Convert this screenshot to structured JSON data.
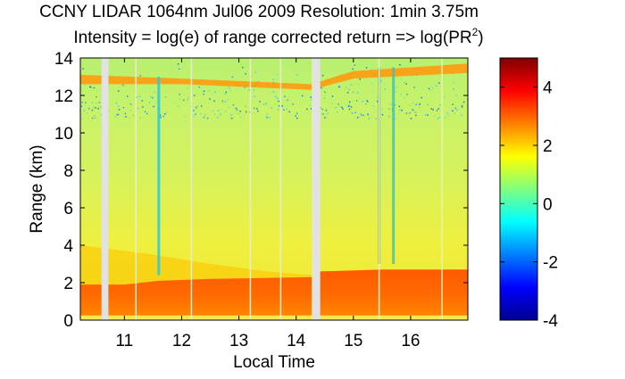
{
  "chart_data": {
    "type": "heatmap",
    "title_line1": "CCNY LIDAR 1064nm Jul06 2009 Resolution: 1min 3.75m",
    "title_line2_prefix": "Intensity = log(e) of range corrected return => log(PR",
    "title_line2_sup": "2",
    "title_line2_suffix": ")",
    "xlabel": "Local Time",
    "ylabel": "Range (km)",
    "xlim": [
      10.23,
      17.0
    ],
    "ylim": [
      0,
      14
    ],
    "x_ticks": [
      11,
      12,
      13,
      14,
      15,
      16
    ],
    "y_ticks": [
      0,
      2,
      4,
      6,
      8,
      10,
      12,
      14
    ],
    "colorbar": {
      "range": [
        -4,
        5
      ],
      "ticks": [
        4,
        2,
        0,
        -2,
        -4
      ],
      "colormap": "jet"
    },
    "data_gaps": [
      {
        "start": 10.6,
        "end": 10.72
      },
      {
        "start": 14.27,
        "end": 14.42
      }
    ],
    "thin_gaps": [
      11.2,
      12.17,
      13.2,
      13.73,
      15.45,
      16.55
    ],
    "layers": {
      "boundary_layer_top_km": [
        {
          "time": 10.23,
          "km": 1.9
        },
        {
          "time": 11.0,
          "km": 1.9
        },
        {
          "time": 11.6,
          "km": 2.1
        },
        {
          "time": 12.5,
          "km": 2.2
        },
        {
          "time": 14.27,
          "km": 2.3
        },
        {
          "time": 14.42,
          "km": 2.6
        },
        {
          "time": 15.5,
          "km": 2.7
        },
        {
          "time": 17.0,
          "km": 2.7
        }
      ],
      "residual_layer_top_km": [
        {
          "time": 10.23,
          "km": 4.0
        },
        {
          "time": 11.5,
          "km": 3.5
        },
        {
          "time": 12.5,
          "km": 3.0
        },
        {
          "time": 13.5,
          "km": 2.6
        },
        {
          "time": 14.27,
          "km": 2.4
        }
      ],
      "cirrus_band_km": [
        {
          "time": 10.23,
          "bottom": 12.6,
          "top": 13.1
        },
        {
          "time": 12.0,
          "bottom": 12.6,
          "top": 12.9
        },
        {
          "time": 14.27,
          "bottom": 12.3,
          "top": 12.6
        },
        {
          "time": 15.0,
          "bottom": 12.9,
          "top": 13.3
        },
        {
          "time": 17.0,
          "bottom": 13.2,
          "top": 13.7
        }
      ],
      "rain_columns": [
        {
          "time": 11.6,
          "from_km": 2.4,
          "to_km": 13.0
        },
        {
          "time": 15.45,
          "from_km": 3.0,
          "to_km": 13.5
        },
        {
          "time": 15.7,
          "from_km": 3.0,
          "to_km": 13.5
        }
      ]
    }
  }
}
